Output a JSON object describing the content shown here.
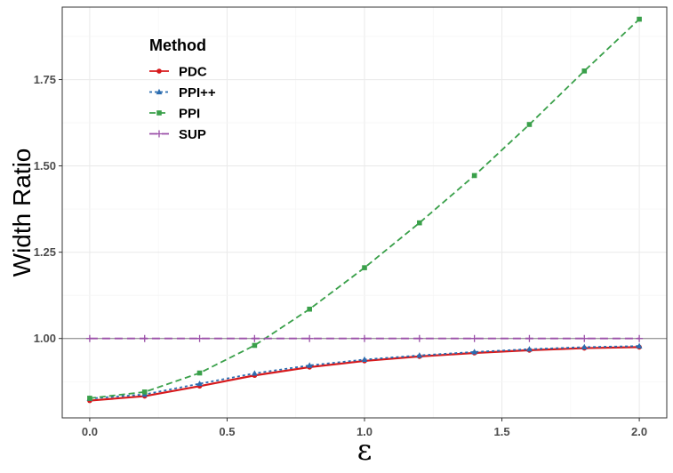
{
  "chart_data": {
    "type": "line",
    "xlabel": "ε",
    "ylabel": "Width Ratio",
    "xlim": [
      -0.1,
      2.1
    ],
    "ylim": [
      0.77,
      1.96
    ],
    "xticks": [
      0.0,
      0.5,
      1.0,
      1.5,
      2.0
    ],
    "xtick_labels": [
      "0.0",
      "0.5",
      "1.0",
      "1.5",
      "2.0"
    ],
    "yticks": [
      1.0,
      1.25,
      1.5,
      1.75
    ],
    "ytick_labels": [
      "1.00",
      "1.25",
      "1.50",
      "1.75"
    ],
    "reference_line_y": 1.0,
    "grid": true,
    "legend": {
      "title": "Method",
      "placement": "top-left"
    },
    "x": [
      0.0,
      0.2,
      0.4,
      0.6,
      0.8,
      1.0,
      1.2,
      1.4,
      1.6,
      1.8,
      2.0
    ],
    "series": [
      {
        "name": "PDC",
        "color": "#d7191c",
        "dash": "",
        "marker": "circle",
        "values": [
          0.82,
          0.833,
          0.862,
          0.893,
          0.917,
          0.935,
          0.948,
          0.958,
          0.966,
          0.972,
          0.975
        ]
      },
      {
        "name": "PPI++",
        "color": "#2b6cb0",
        "dash": "3,3",
        "marker": "triangle",
        "values": [
          0.826,
          0.838,
          0.869,
          0.899,
          0.922,
          0.939,
          0.951,
          0.961,
          0.969,
          0.975,
          0.978
        ]
      },
      {
        "name": "PPI",
        "color": "#3aa04a",
        "dash": "7,4",
        "marker": "square",
        "values": [
          0.827,
          0.845,
          0.9,
          0.98,
          1.085,
          1.205,
          1.335,
          1.472,
          1.62,
          1.775,
          1.925
        ]
      },
      {
        "name": "SUP",
        "color": "#9a4fa8",
        "dash": "9,5",
        "marker": "plus",
        "values": [
          1.0,
          1.0,
          1.0,
          1.0,
          1.0,
          1.0,
          1.0,
          1.0,
          1.0,
          1.0,
          1.0
        ]
      }
    ]
  }
}
